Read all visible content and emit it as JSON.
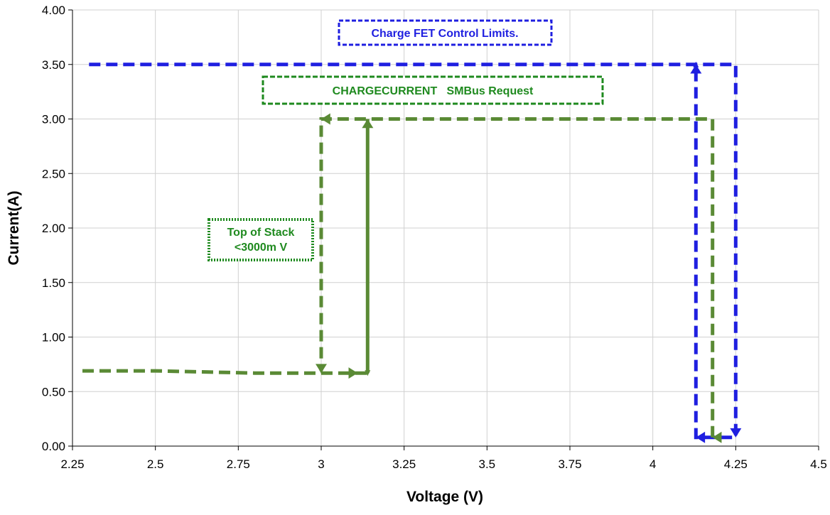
{
  "chart_data": {
    "type": "line",
    "title": "",
    "xlabel": "Voltage (V)",
    "ylabel": "Current(A)",
    "xlim": [
      2.25,
      4.5
    ],
    "ylim": [
      0,
      4
    ],
    "x_ticks": [
      "2.25",
      "2.5",
      "2.75",
      "3",
      "3.25",
      "3.5",
      "3.75",
      "4",
      "4.25",
      "4.5"
    ],
    "y_ticks": [
      "0.00",
      "0.50",
      "1.00",
      "1.50",
      "2.00",
      "2.50",
      "3.00",
      "3.50",
      "4.00"
    ],
    "grid": true,
    "series": [
      {
        "name": "Charge FET Control Limits.",
        "color": "#1f1fe0",
        "style": "dashed",
        "points": [
          [
            2.3,
            3.5
          ],
          [
            4.25,
            3.5
          ],
          [
            4.25,
            0.08
          ],
          [
            4.13,
            0.08
          ],
          [
            4.13,
            3.5
          ]
        ]
      },
      {
        "name": "CHARGECURRENT   SMBus Request",
        "color": "#5a8a35",
        "style": "dashed",
        "points": [
          [
            2.28,
            0.69
          ],
          [
            2.5,
            0.69
          ],
          [
            2.8,
            0.67
          ],
          [
            3.11,
            0.67
          ],
          [
            3.14,
            0.67
          ],
          [
            3.14,
            3.0
          ],
          [
            3.14,
            0.67
          ]
        ]
      },
      {
        "name": "Top of Stack path",
        "color": "#5a8a35",
        "style": "dashed",
        "points": [
          [
            4.18,
            0.08
          ],
          [
            4.18,
            3.0
          ],
          [
            3.0,
            3.0
          ],
          [
            3.0,
            0.69
          ]
        ]
      }
    ],
    "annotations": [
      {
        "text": "Charge FET Control Limits.",
        "color": "#1f1fe0"
      },
      {
        "text": "CHARGECURRENT   SMBus Request",
        "color": "#1f8a1f"
      },
      {
        "lines": [
          "Top of Stack",
          "<3000m V"
        ],
        "color": "#1f8a1f"
      }
    ]
  }
}
